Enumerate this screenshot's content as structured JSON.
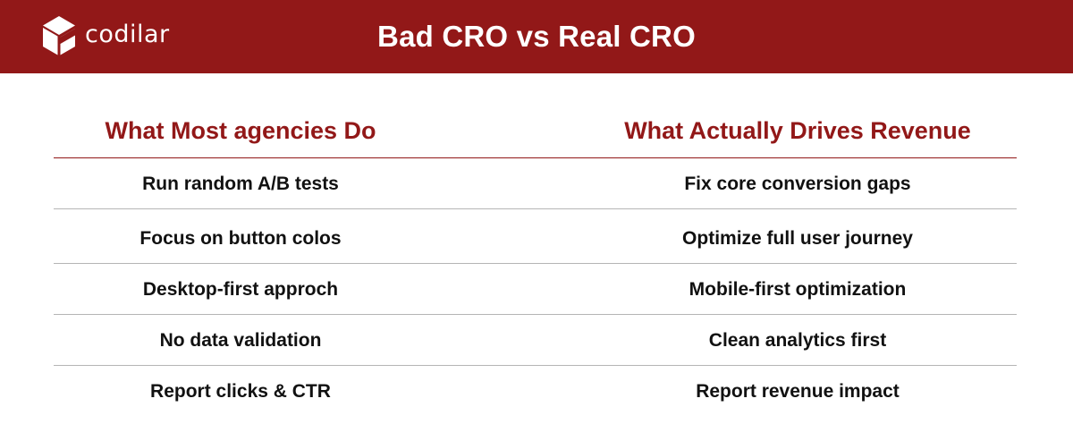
{
  "brand": {
    "name": "codilar",
    "logo_icon": "codilar-cube-logo-icon",
    "header_color": "#921818"
  },
  "title": "Bad CRO vs Real CRO",
  "columns": {
    "left_heading": "What Most agencies Do",
    "right_heading": "What Actually Drives Revenue",
    "heading_color": "#921818"
  },
  "rows": [
    {
      "bad": "Run random A/B tests",
      "real": "Fix core conversion gaps"
    },
    {
      "bad": "Focus on button colos",
      "real": "Optimize full user journey"
    },
    {
      "bad": "Desktop-first approch",
      "real": "Mobile-first optimization"
    },
    {
      "bad": "No data validation",
      "real": "Clean analytics first"
    },
    {
      "bad": "Report clicks & CTR",
      "real": "Report revenue impact"
    }
  ]
}
